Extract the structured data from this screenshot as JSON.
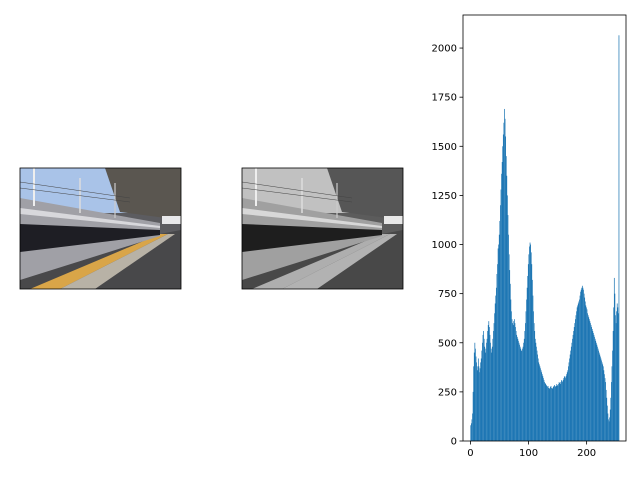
{
  "chart_data": {
    "type": "histogram",
    "bins": [
      0,
      1,
      2,
      3,
      4,
      5,
      6,
      7,
      8,
      9,
      10,
      11,
      12,
      13,
      14,
      15,
      16,
      17,
      18,
      19,
      20,
      21,
      22,
      23,
      24,
      25,
      26,
      27,
      28,
      29,
      30,
      31,
      32,
      33,
      34,
      35,
      36,
      37,
      38,
      39,
      40,
      41,
      42,
      43,
      44,
      45,
      46,
      47,
      48,
      49,
      50,
      51,
      52,
      53,
      54,
      55,
      56,
      57,
      58,
      59,
      60,
      61,
      62,
      63,
      64,
      65,
      66,
      67,
      68,
      69,
      70,
      71,
      72,
      73,
      74,
      75,
      76,
      77,
      78,
      79,
      80,
      81,
      82,
      83,
      84,
      85,
      86,
      87,
      88,
      89,
      90,
      91,
      92,
      93,
      94,
      95,
      96,
      97,
      98,
      99,
      100,
      101,
      102,
      103,
      104,
      105,
      106,
      107,
      108,
      109,
      110,
      111,
      112,
      113,
      114,
      115,
      116,
      117,
      118,
      119,
      120,
      121,
      122,
      123,
      124,
      125,
      126,
      127,
      128,
      129,
      130,
      131,
      132,
      133,
      134,
      135,
      136,
      137,
      138,
      139,
      140,
      141,
      142,
      143,
      144,
      145,
      146,
      147,
      148,
      149,
      150,
      151,
      152,
      153,
      154,
      155,
      156,
      157,
      158,
      159,
      160,
      161,
      162,
      163,
      164,
      165,
      166,
      167,
      168,
      169,
      170,
      171,
      172,
      173,
      174,
      175,
      176,
      177,
      178,
      179,
      180,
      181,
      182,
      183,
      184,
      185,
      186,
      187,
      188,
      189,
      190,
      191,
      192,
      193,
      194,
      195,
      196,
      197,
      198,
      199,
      200,
      201,
      202,
      203,
      204,
      205,
      206,
      207,
      208,
      209,
      210,
      211,
      212,
      213,
      214,
      215,
      216,
      217,
      218,
      219,
      220,
      221,
      222,
      223,
      224,
      225,
      226,
      227,
      228,
      229,
      230,
      231,
      232,
      233,
      234,
      235,
      236,
      237,
      238,
      239,
      240,
      241,
      242,
      243,
      244,
      245,
      246,
      247,
      248,
      249,
      250,
      251,
      252,
      253,
      254,
      255,
      256
    ],
    "values": [
      80,
      90,
      110,
      140,
      250,
      380,
      450,
      500,
      470,
      430,
      400,
      380,
      360,
      420,
      380,
      350,
      370,
      400,
      420,
      460,
      500,
      540,
      560,
      520,
      480,
      450,
      470,
      500,
      520,
      560,
      590,
      610,
      580,
      540,
      500,
      470,
      450,
      480,
      520,
      560,
      600,
      650,
      700,
      740,
      780,
      850,
      900,
      980,
      1000,
      1050,
      1120,
      1200,
      1280,
      1360,
      1420,
      1500,
      1560,
      1620,
      1690,
      1640,
      1550,
      1450,
      1350,
      1250,
      1150,
      1050,
      950,
      870,
      800,
      720,
      660,
      620,
      600,
      590,
      610,
      620,
      600,
      580,
      560,
      540,
      530,
      520,
      510,
      500,
      490,
      480,
      470,
      460,
      460,
      470,
      480,
      500,
      520,
      560,
      600,
      660,
      720,
      780,
      840,
      900,
      950,
      990,
      1010,
      1000,
      960,
      900,
      820,
      740,
      660,
      600,
      560,
      520,
      500,
      480,
      460,
      440,
      420,
      400,
      390,
      380,
      370,
      360,
      350,
      340,
      330,
      320,
      310,
      300,
      295,
      290,
      285,
      280,
      275,
      280,
      270,
      265,
      270,
      275,
      280,
      270,
      265,
      270,
      275,
      280,
      285,
      280,
      275,
      280,
      290,
      285,
      280,
      290,
      300,
      295,
      290,
      300,
      310,
      305,
      300,
      310,
      320,
      330,
      325,
      320,
      330,
      340,
      350,
      360,
      380,
      400,
      420,
      440,
      460,
      480,
      500,
      520,
      540,
      560,
      580,
      600,
      620,
      640,
      660,
      680,
      690,
      700,
      710,
      720,
      740,
      760,
      770,
      780,
      790,
      780,
      770,
      750,
      730,
      710,
      690,
      680,
      670,
      650,
      640,
      630,
      620,
      610,
      600,
      590,
      580,
      570,
      560,
      550,
      540,
      530,
      520,
      510,
      500,
      490,
      480,
      470,
      460,
      450,
      440,
      430,
      420,
      410,
      400,
      390,
      380,
      360,
      340,
      320,
      300,
      260,
      220,
      180,
      140,
      110,
      100,
      120,
      160,
      220,
      300,
      380,
      460,
      560,
      680,
      830,
      750,
      640,
      600,
      660,
      700,
      680,
      650,
      2065
    ],
    "color": "#1f77b4",
    "xlim": [
      -12.75,
      267.75
    ],
    "ylim": [
      0,
      2168.25
    ],
    "xticks": [
      0,
      100,
      200
    ],
    "yticks": [
      0,
      250,
      500,
      750,
      1000,
      1250,
      1500,
      1750,
      2000
    ]
  }
}
